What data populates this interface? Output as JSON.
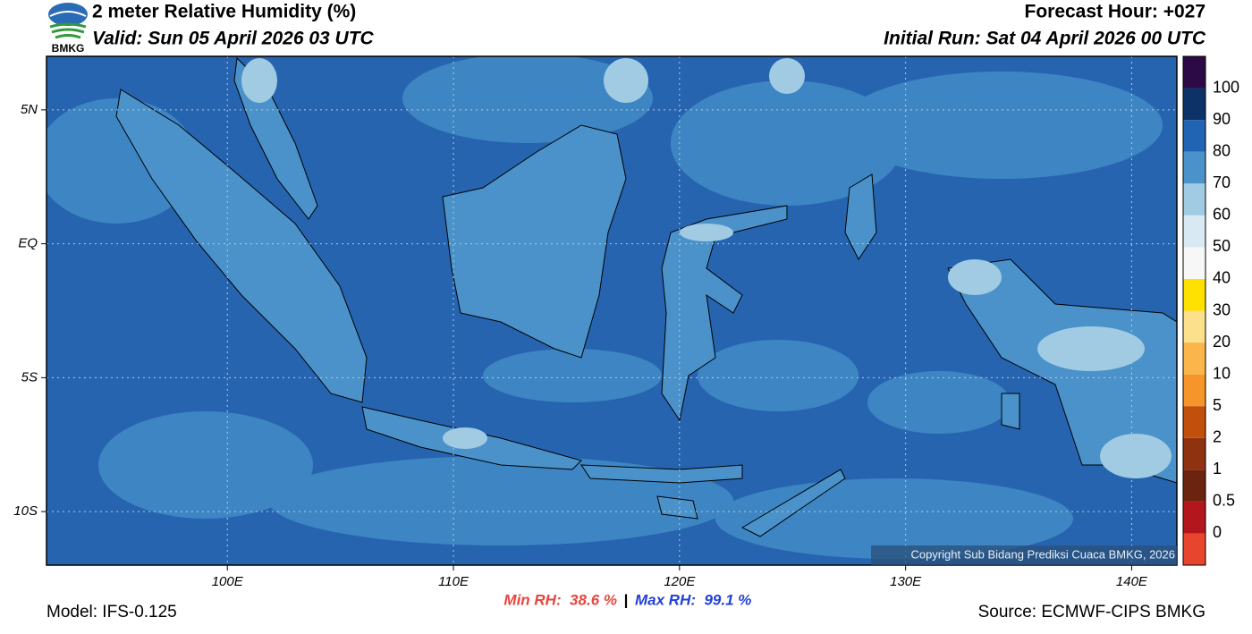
{
  "header": {
    "title": "2 meter Relative Humidity (%)",
    "valid": "Valid: Sun 05 April 2026 03 UTC",
    "forecast_hour": "Forecast Hour: +027",
    "initial_run": "Initial Run: Sat 04 April 2026 00 UTC",
    "logo": "BMKG"
  },
  "map": {
    "xlim": [
      92,
      142
    ],
    "ylim": [
      -12,
      7
    ],
    "xticks": [
      {
        "value": 100,
        "label": "100E"
      },
      {
        "value": 110,
        "label": "110E"
      },
      {
        "value": 120,
        "label": "120E"
      },
      {
        "value": 130,
        "label": "130E"
      },
      {
        "value": 140,
        "label": "140E"
      }
    ],
    "yticks": [
      {
        "value": 5,
        "label": "5N"
      },
      {
        "value": 0,
        "label": "EQ"
      },
      {
        "value": -5,
        "label": "5S"
      },
      {
        "value": -10,
        "label": "10S"
      }
    ],
    "grid": true
  },
  "colorbar": {
    "levels": [
      0,
      0.5,
      1,
      2,
      5,
      10,
      20,
      30,
      40,
      50,
      60,
      70,
      80,
      90,
      100
    ],
    "colors": [
      "#e8452e",
      "#b3161c",
      "#6a2410",
      "#8f3210",
      "#c24f0c",
      "#f6962a",
      "#fbb64b",
      "#fde08c",
      "#ffe100",
      "#f7f7f7",
      "#d8e9f4",
      "#a0cbe3",
      "#4a92c9",
      "#2264b4",
      "#0d3268",
      "#2b0a45"
    ]
  },
  "footer": {
    "model": "Model: IFS-0.125",
    "min_rh": "Min RH:  38.6 %",
    "separator": "|",
    "max_rh": "Max RH:  99.1 %",
    "source": "Source: ECMWF-CIPS BMKG",
    "copyright": "Copyright Sub Bidang Prediksi Cuaca BMKG, 2026"
  }
}
